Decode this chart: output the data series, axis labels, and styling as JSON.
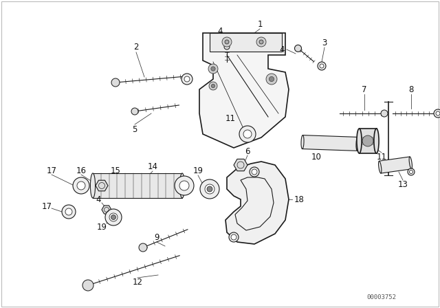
{
  "background_color": "#ffffff",
  "diagram_color": "#1a1a1a",
  "watermark": "00003752",
  "fig_width": 6.4,
  "fig_height": 4.48,
  "dpi": 100
}
